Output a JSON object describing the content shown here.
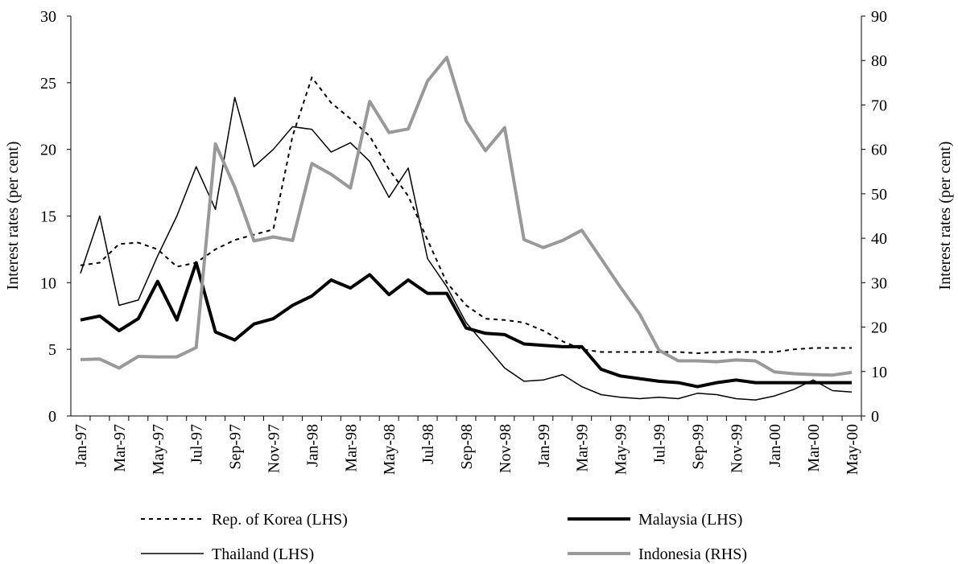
{
  "chart_data": {
    "type": "line",
    "categories": [
      "Jan-97",
      null,
      "Mar-97",
      null,
      "May-97",
      null,
      "Jul-97",
      null,
      "Sep-97",
      null,
      "Nov-97",
      null,
      "Jan-98",
      null,
      "Mar-98",
      null,
      "May-98",
      null,
      "Jul-98",
      null,
      "Sep-98",
      null,
      "Nov-98",
      null,
      "Jan-99",
      null,
      "Mar-99",
      null,
      "May-99",
      null,
      "Jul-99",
      null,
      "Sep-99",
      null,
      "Nov-99",
      null,
      "Jan-00",
      null,
      "Mar-00",
      null,
      "May-00"
    ],
    "ylabel": "Interest rates (per cent)",
    "y2label": "Interest rates (per cent)",
    "ylim": [
      0,
      30
    ],
    "yticks": [
      0,
      5,
      10,
      15,
      20,
      25,
      30
    ],
    "y2lim": [
      0,
      90
    ],
    "y2ticks": [
      0,
      10,
      20,
      30,
      40,
      50,
      60,
      70,
      80,
      90
    ],
    "series": [
      {
        "name": "Rep. of Korea (LHS)",
        "color": "#000000",
        "line_style": "dashed",
        "line_width": 2,
        "values": [
          11.3,
          11.5,
          12.9,
          13.0,
          12.5,
          11.2,
          11.5,
          12.5,
          13.2,
          13.6,
          14.0,
          21.0,
          25.4,
          23.5,
          22.3,
          21.0,
          18.5,
          16.5,
          13.2,
          10.0,
          8.3,
          7.3,
          7.2,
          7.0,
          6.4,
          5.6,
          5.0,
          4.8,
          4.8,
          4.8,
          4.8,
          4.8,
          4.7,
          4.8,
          4.8,
          4.8,
          4.8,
          5.0,
          5.1,
          5.1,
          5.1
        ]
      },
      {
        "name": "Malaysia (LHS)",
        "color": "#000000",
        "line_style": "solid",
        "line_width": 4,
        "values": [
          7.2,
          7.5,
          6.4,
          7.3,
          10.1,
          7.2,
          11.5,
          6.3,
          5.7,
          6.9,
          7.3,
          8.3,
          9.0,
          10.2,
          9.6,
          10.6,
          9.1,
          10.2,
          9.2,
          9.2,
          6.6,
          6.2,
          6.1,
          5.4,
          5.3,
          5.2,
          5.2,
          3.5,
          3.0,
          2.8,
          2.6,
          2.5,
          2.2,
          2.5,
          2.7,
          2.5,
          2.5,
          2.5,
          2.5,
          2.5,
          2.5
        ]
      },
      {
        "name": "Thailand (LHS)",
        "color": "#000000",
        "line_style": "solid",
        "line_width": 1.5,
        "values": [
          10.7,
          15.0,
          8.3,
          8.7,
          12.0,
          15.0,
          18.7,
          15.5,
          23.9,
          18.7,
          20.0,
          21.7,
          21.5,
          19.8,
          20.5,
          19.1,
          16.4,
          18.6,
          11.8,
          9.7,
          7.0,
          5.3,
          3.6,
          2.6,
          2.7,
          3.1,
          2.2,
          1.6,
          1.4,
          1.3,
          1.4,
          1.3,
          1.7,
          1.6,
          1.3,
          1.2,
          1.5,
          2.0,
          2.7,
          1.9,
          1.8
        ]
      },
      {
        "name": "Indonesia (RHS)",
        "color": "#999999",
        "line_style": "solid",
        "line_width": 4,
        "axis": "y2",
        "values": [
          12.7,
          12.8,
          10.8,
          13.4,
          13.3,
          13.3,
          15.4,
          61.2,
          51.5,
          39.4,
          40.3,
          39.5,
          56.8,
          54.4,
          51.3,
          70.8,
          63.8,
          64.6,
          75.4,
          80.7,
          66.4,
          59.7,
          64.9,
          39.7,
          37.9,
          39.5,
          41.8,
          35.4,
          29.0,
          22.9,
          14.8,
          12.4,
          12.4,
          12.2,
          12.6,
          12.4,
          9.9,
          9.5,
          9.3,
          9.2,
          9.8
        ]
      }
    ]
  }
}
